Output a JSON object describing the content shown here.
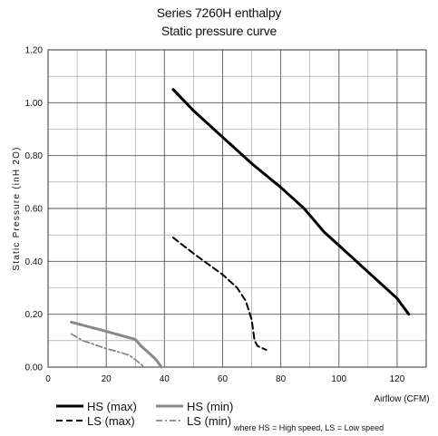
{
  "chart_data": {
    "type": "line",
    "title_line1": "Series 7260H enthalpy",
    "title_line2": "Static pressure curve",
    "xlabel": "Airflow (CFM)",
    "ylabel": "Static Pressure (inH 2O)",
    "xlim": [
      0,
      130
    ],
    "ylim": [
      0,
      1.2
    ],
    "grid": true,
    "x_ticks": [
      "0",
      "20",
      "40",
      "60",
      "80",
      "100",
      "120"
    ],
    "y_ticks": [
      "0.00",
      "0.20",
      "0.40",
      "0.60",
      "0.80",
      "1.00",
      "1.20"
    ],
    "x_tick_values": [
      0,
      20,
      40,
      60,
      80,
      100,
      120
    ],
    "y_tick_values": [
      0,
      0.2,
      0.4,
      0.6,
      0.8,
      1.0,
      1.2
    ],
    "series": [
      {
        "name": "HS (max)",
        "color": "#000000",
        "style": "solid",
        "points": [
          [
            43,
            1.05
          ],
          [
            50,
            0.97
          ],
          [
            60,
            0.87
          ],
          [
            70,
            0.77
          ],
          [
            80,
            0.68
          ],
          [
            88,
            0.6
          ],
          [
            95,
            0.51
          ],
          [
            100,
            0.46
          ],
          [
            110,
            0.36
          ],
          [
            120,
            0.26
          ],
          [
            122,
            0.23
          ],
          [
            124,
            0.2
          ]
        ]
      },
      {
        "name": "HS (min)",
        "color": "#888888",
        "style": "solid",
        "points": [
          [
            8,
            0.17
          ],
          [
            15,
            0.15
          ],
          [
            20,
            0.135
          ],
          [
            25,
            0.12
          ],
          [
            30,
            0.105
          ],
          [
            32,
            0.08
          ],
          [
            35,
            0.05
          ],
          [
            37,
            0.03
          ],
          [
            38,
            0.015
          ],
          [
            39,
            0.0
          ]
        ]
      },
      {
        "name": "LS (max)",
        "color": "#000000",
        "style": "dashed",
        "points": [
          [
            43,
            0.49
          ],
          [
            50,
            0.43
          ],
          [
            55,
            0.39
          ],
          [
            60,
            0.35
          ],
          [
            65,
            0.3
          ],
          [
            68,
            0.25
          ],
          [
            70,
            0.18
          ],
          [
            71,
            0.1
          ],
          [
            72,
            0.08
          ],
          [
            75,
            0.065
          ]
        ]
      },
      {
        "name": "LS (min)",
        "color": "#888888",
        "style": "dashdot",
        "points": [
          [
            8,
            0.125
          ],
          [
            12,
            0.1
          ],
          [
            16,
            0.085
          ],
          [
            20,
            0.07
          ],
          [
            25,
            0.055
          ],
          [
            28,
            0.045
          ],
          [
            31,
            0.02
          ],
          [
            33,
            0.0
          ]
        ]
      }
    ],
    "legend_note": "where HS = High speed, LS = Low speed"
  }
}
